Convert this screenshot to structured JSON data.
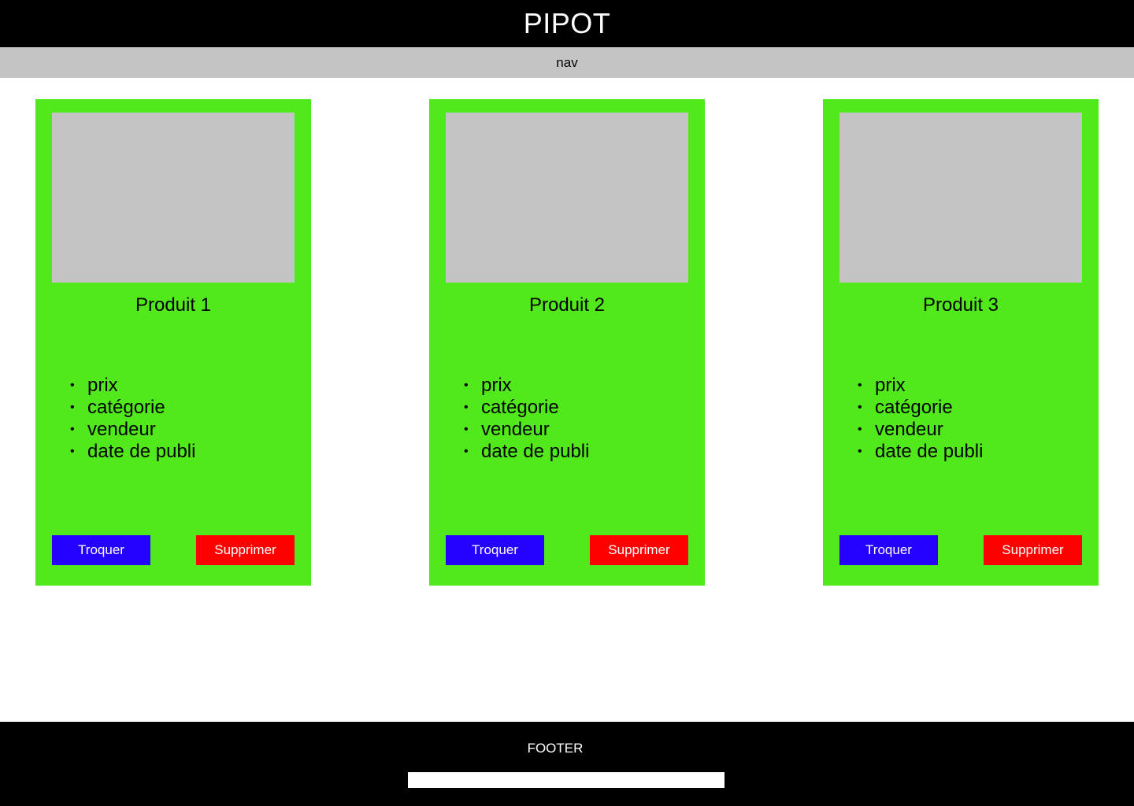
{
  "header": {
    "title": "PIPOT"
  },
  "nav": {
    "label": "nav"
  },
  "products": [
    {
      "title": "Produit 1",
      "details": [
        "prix",
        "catégorie",
        "vendeur",
        "date de publi"
      ],
      "trade_label": "Troquer",
      "delete_label": "Supprimer"
    },
    {
      "title": "Produit 2",
      "details": [
        "prix",
        "catégorie",
        "vendeur",
        "date de publi"
      ],
      "trade_label": "Troquer",
      "delete_label": "Supprimer"
    },
    {
      "title": "Produit 3",
      "details": [
        "prix",
        "catégorie",
        "vendeur",
        "date de publi"
      ],
      "trade_label": "Troquer",
      "delete_label": "Supprimer"
    }
  ],
  "footer": {
    "label": "FOOTER"
  },
  "colors": {
    "card": "#52e91c",
    "placeholder": "#c4c4c4",
    "trade_button": "#2400ff",
    "delete_button": "#ff0000",
    "header": "#000000"
  }
}
